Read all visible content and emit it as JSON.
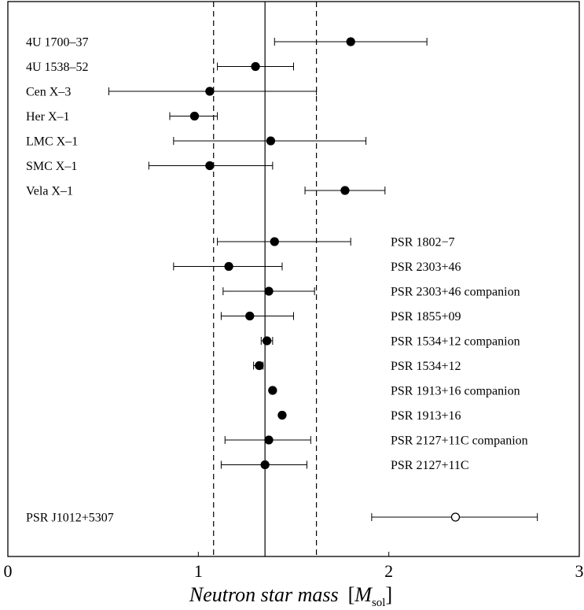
{
  "chart_data": {
    "type": "scatter",
    "title": "",
    "xlabel": "Neutron star mass",
    "xlabel_unit_open": "[",
    "xlabel_unit_symbol": "M",
    "xlabel_unit_sub": "sol",
    "xlabel_unit_close": "]",
    "ylabel": "",
    "xlim": [
      0,
      3
    ],
    "xticks": [
      0,
      1,
      2,
      3
    ],
    "grid": false,
    "reference_lines": [
      {
        "x": 1.35,
        "style": "solid"
      },
      {
        "x": 1.08,
        "style": "dashed"
      },
      {
        "x": 1.62,
        "style": "dashed"
      }
    ],
    "points": [
      {
        "label": "4U 1700–37",
        "x": 1.8,
        "lo": 1.4,
        "hi": 2.2,
        "filled": true,
        "label_side": "left"
      },
      {
        "label": "4U 1538–52",
        "x": 1.3,
        "lo": 1.1,
        "hi": 1.5,
        "filled": true,
        "label_side": "left"
      },
      {
        "label": "Cen X–3",
        "x": 1.06,
        "lo": 0.53,
        "hi": 1.62,
        "filled": true,
        "label_side": "left"
      },
      {
        "label": "Her X–1",
        "x": 0.98,
        "lo": 0.85,
        "hi": 1.1,
        "filled": true,
        "label_side": "left"
      },
      {
        "label": "LMC X–1",
        "x": 1.38,
        "lo": 0.87,
        "hi": 1.88,
        "filled": true,
        "label_side": "left"
      },
      {
        "label": "SMC X–1",
        "x": 1.06,
        "lo": 0.74,
        "hi": 1.39,
        "filled": true,
        "label_side": "left"
      },
      {
        "label": "Vela X–1",
        "x": 1.77,
        "lo": 1.56,
        "hi": 1.98,
        "filled": true,
        "label_side": "left"
      },
      {
        "label": "PSR 1802−7",
        "x": 1.4,
        "lo": 1.1,
        "hi": 1.8,
        "filled": true,
        "label_side": "right"
      },
      {
        "label": "PSR 2303+46",
        "x": 1.16,
        "lo": 0.87,
        "hi": 1.44,
        "filled": true,
        "label_side": "right"
      },
      {
        "label": "PSR 2303+46 companion",
        "x": 1.37,
        "lo": 1.13,
        "hi": 1.61,
        "filled": true,
        "label_side": "right"
      },
      {
        "label": "PSR 1855+09",
        "x": 1.27,
        "lo": 1.12,
        "hi": 1.5,
        "filled": true,
        "label_side": "right"
      },
      {
        "label": "PSR 1534+12 companion",
        "x": 1.36,
        "lo": 1.33,
        "hi": 1.39,
        "filled": true,
        "label_side": "right"
      },
      {
        "label": "PSR 1534+12",
        "x": 1.32,
        "lo": 1.29,
        "hi": 1.34,
        "filled": true,
        "label_side": "right"
      },
      {
        "label": "PSR 1913+16 companion",
        "x": 1.39,
        "lo": 1.39,
        "hi": 1.39,
        "filled": true,
        "label_side": "right"
      },
      {
        "label": "PSR 1913+16",
        "x": 1.44,
        "lo": 1.44,
        "hi": 1.44,
        "filled": true,
        "label_side": "right"
      },
      {
        "label": "PSR 2127+11C companion",
        "x": 1.37,
        "lo": 1.14,
        "hi": 1.59,
        "filled": true,
        "label_side": "right"
      },
      {
        "label": "PSR 2127+11C",
        "x": 1.35,
        "lo": 1.12,
        "hi": 1.57,
        "filled": true,
        "label_side": "right"
      },
      {
        "label": "PSR J1012+5307",
        "x": 2.35,
        "lo": 1.91,
        "hi": 2.78,
        "filled": false,
        "label_side": "left"
      }
    ]
  }
}
